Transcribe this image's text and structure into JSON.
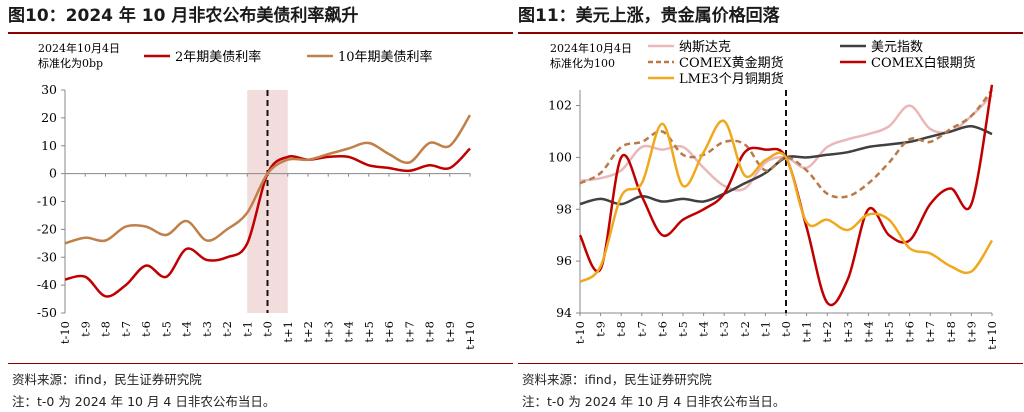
{
  "charts": [
    {
      "figure_title": "图10：2024 年 10 月非农公布美债利率飙升",
      "note_lines": [
        "2024年10月4日",
        "标准化为0bp"
      ],
      "source": "资料来源：ifind，民生证券研究院",
      "footnote": "注：t-0 为 2024 年 10 月 4 日非农公布当日。",
      "colors": {
        "2y": "#c00000",
        "10y": "#c0804a",
        "shade": "#f2dcdc"
      }
    },
    {
      "figure_title": "图11：美元上涨，贵金属价格回落",
      "note_lines": [
        "2024年10月4日",
        "标准化为100"
      ],
      "source": "资料来源：ifind，民生证券研究院",
      "footnote": "注：t-0 为 2024 年 10 月 4 日非农公布当日。",
      "colors": {
        "nasdaq": "#eab8ba",
        "usd": "#404040",
        "gold": "#b97a4a",
        "silver": "#c00000",
        "copper": "#f0a81c"
      }
    }
  ],
  "chart_data": [
    {
      "type": "line",
      "x": [
        "t-10",
        "t-9",
        "t-8",
        "t-7",
        "t-6",
        "t-5",
        "t-4",
        "t-3",
        "t-2",
        "t-1",
        "t-0",
        "t+1",
        "t+2",
        "t+3",
        "t+4",
        "t+5",
        "t+6",
        "t+7",
        "t+8",
        "t+9",
        "t+10"
      ],
      "ylim": [
        -50,
        30
      ],
      "yticks": [
        -50,
        -40,
        -30,
        -20,
        -10,
        0,
        10,
        20,
        30
      ],
      "shaded_range": [
        "t-1",
        "t+1"
      ],
      "event_line": "t-0",
      "series": [
        {
          "name": "2年期美债利率",
          "key": "2y",
          "values": [
            -38,
            -37,
            -44,
            -40,
            -33,
            -37,
            -27,
            -31,
            -30,
            -25,
            0,
            6,
            5,
            6,
            6,
            3,
            2,
            1,
            3,
            2,
            9
          ]
        },
        {
          "name": "10年期美债利率",
          "key": "10y",
          "values": [
            -25,
            -23,
            -24,
            -19,
            -19,
            -22,
            -17,
            -24,
            -20,
            -14,
            0,
            5,
            5,
            7,
            9,
            11,
            7,
            4,
            11,
            10,
            21
          ]
        }
      ]
    },
    {
      "type": "line",
      "x": [
        "t-10",
        "t-9",
        "t-8",
        "t-7",
        "t-6",
        "t-5",
        "t-4",
        "t-3",
        "t-2",
        "t-1",
        "t-0",
        "t+1",
        "t+2",
        "t+3",
        "t+4",
        "t+5",
        "t+6",
        "t+7",
        "t+8",
        "t+9",
        "t+10"
      ],
      "ylim": [
        94,
        102.6
      ],
      "yticks": [
        94,
        96,
        98,
        100,
        102
      ],
      "event_line": "t-0",
      "series": [
        {
          "name": "纳斯达克",
          "key": "nasdaq",
          "values": [
            99.1,
            99.2,
            99.5,
            100.4,
            100.3,
            100.4,
            99.6,
            98.9,
            98.8,
            99.8,
            100.0,
            99.6,
            100.4,
            100.7,
            100.9,
            101.2,
            102.0,
            101.1,
            101.0,
            101.6,
            102.4
          ]
        },
        {
          "name": "美元指数",
          "key": "usd",
          "values": [
            98.2,
            98.4,
            98.2,
            98.5,
            98.3,
            98.4,
            98.3,
            98.6,
            99.0,
            99.4,
            100.0,
            100.0,
            100.1,
            100.2,
            100.4,
            100.5,
            100.6,
            100.8,
            101.0,
            101.2,
            100.9
          ]
        },
        {
          "name": "COMEX黄金期货",
          "key": "gold",
          "values": [
            99.0,
            99.4,
            100.4,
            100.6,
            101.0,
            100.1,
            100.1,
            100.6,
            100.5,
            99.5,
            100.0,
            99.5,
            98.6,
            98.5,
            99.0,
            99.8,
            100.7,
            100.6,
            101.1,
            101.6,
            102.6
          ]
        },
        {
          "name": "COMEX白银期货",
          "key": "silver",
          "values": [
            97.0,
            95.7,
            100.0,
            98.5,
            97.0,
            97.6,
            98.0,
            98.6,
            100.2,
            100.3,
            100.0,
            97.3,
            94.4,
            95.3,
            98.0,
            97.0,
            96.8,
            98.2,
            98.8,
            98.2,
            102.8
          ]
        },
        {
          "name": "LME3个月铜期货",
          "key": "copper",
          "values": [
            95.2,
            95.8,
            98.5,
            99.0,
            101.3,
            98.9,
            100.2,
            101.4,
            99.3,
            99.9,
            100.0,
            97.5,
            97.6,
            97.2,
            97.8,
            97.6,
            96.5,
            96.3,
            95.8,
            95.6,
            96.8
          ]
        }
      ]
    }
  ]
}
